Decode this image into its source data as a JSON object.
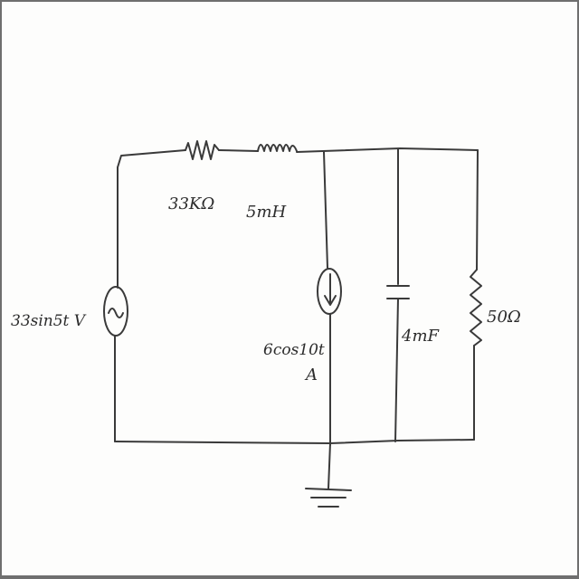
{
  "labels": {
    "resistor_series": "33KΩ",
    "inductor_series": "5mH",
    "voltage_source": "33sin5t V",
    "current_source_line1": "6cos10t",
    "current_source_line2": "A",
    "capacitor": "4mF",
    "resistor_shunt": "50Ω"
  },
  "colors": {
    "ink": "#3a3a3a",
    "paper": "#fdfdfc",
    "border": "#6f6f6f"
  }
}
